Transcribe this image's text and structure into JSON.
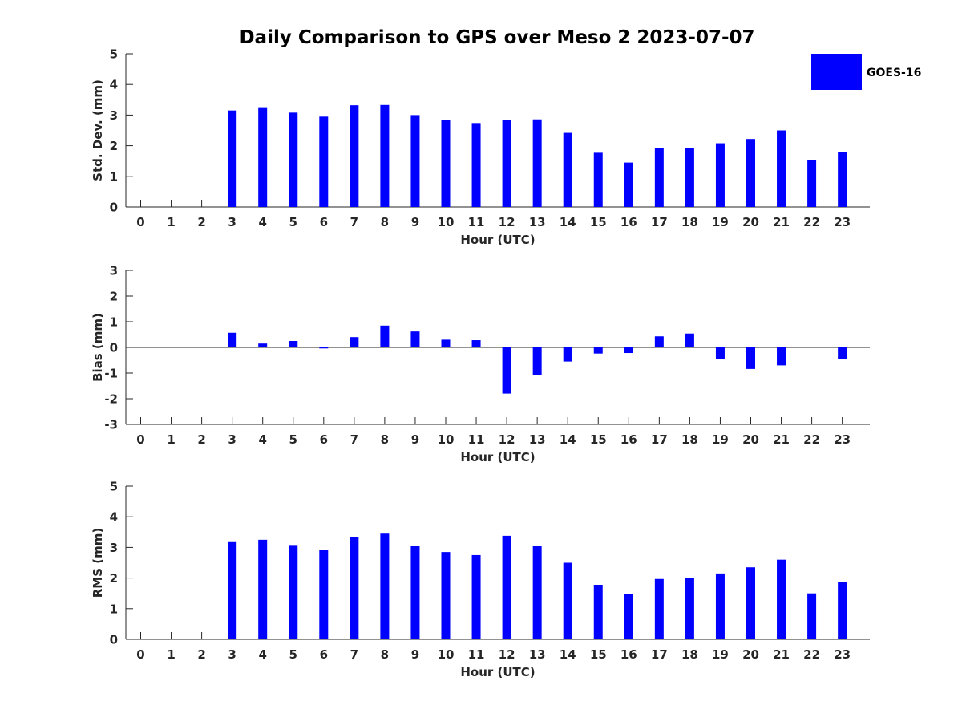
{
  "chart_data": {
    "title": "Daily Comparison to GPS over Meso 2 2023-07-07",
    "legend": {
      "label": "GOES-16",
      "color": "#0000ff",
      "position": "top-right"
    },
    "hours": [
      0,
      1,
      2,
      3,
      4,
      5,
      6,
      7,
      8,
      9,
      10,
      11,
      12,
      13,
      14,
      15,
      16,
      17,
      18,
      19,
      20,
      21,
      22,
      23
    ],
    "panels": [
      {
        "type": "bar",
        "ylabel": "Std. Dev. (mm)",
        "xlabel": "Hour (UTC)",
        "ylim": [
          0,
          5
        ],
        "yticks": [
          0,
          1,
          2,
          3,
          4,
          5
        ],
        "series": [
          {
            "name": "GOES-16",
            "values": [
              null,
              null,
              null,
              3.15,
              3.23,
              3.08,
              2.95,
              3.32,
              3.33,
              3.0,
              2.85,
              2.74,
              2.85,
              2.86,
              2.42,
              1.77,
              1.45,
              1.93,
              1.93,
              2.08,
              2.22,
              2.5,
              1.52,
              1.8
            ]
          }
        ]
      },
      {
        "type": "bar",
        "ylabel": "Bias (mm)",
        "xlabel": "Hour (UTC)",
        "ylim": [
          -3,
          3
        ],
        "yticks": [
          -3,
          -2,
          -1,
          0,
          1,
          2,
          3
        ],
        "zero_line": true,
        "series": [
          {
            "name": "GOES-16",
            "values": [
              null,
              null,
              null,
              0.57,
              0.15,
              0.25,
              -0.04,
              0.4,
              0.85,
              0.62,
              0.3,
              0.28,
              -1.8,
              -1.08,
              -0.55,
              -0.24,
              -0.22,
              0.43,
              0.54,
              -0.45,
              -0.84,
              -0.7,
              null,
              -0.45
            ]
          }
        ]
      },
      {
        "type": "bar",
        "ylabel": "RMS (mm)",
        "xlabel": "Hour (UTC)",
        "ylim": [
          0,
          5
        ],
        "yticks": [
          0,
          1,
          2,
          3,
          4,
          5
        ],
        "series": [
          {
            "name": "GOES-16",
            "values": [
              null,
              null,
              null,
              3.2,
              3.25,
              3.08,
              2.93,
              3.35,
              3.45,
              3.05,
              2.85,
              2.75,
              3.38,
              3.05,
              2.5,
              1.78,
              1.48,
              1.97,
              2.0,
              2.15,
              2.35,
              2.6,
              1.5,
              1.87
            ]
          }
        ]
      }
    ]
  }
}
